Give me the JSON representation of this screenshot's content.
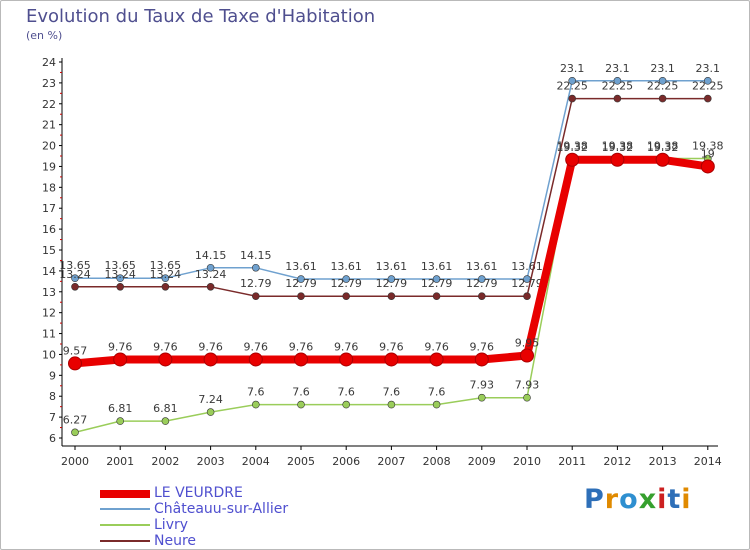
{
  "title": "Evolution du Taux de Taxe d'Habitation",
  "unit_label": "(en %)",
  "logo_text": "Proxiti",
  "chart_data": {
    "type": "line",
    "title": "Evolution du Taux de Taxe d'Habitation",
    "xlabel": "",
    "ylabel": "(en %)",
    "ylim": [
      6,
      24
    ],
    "grid": false,
    "legend_position": "bottom-left",
    "x": [
      "2000",
      "2001",
      "2002",
      "2003",
      "2004",
      "2005",
      "2006",
      "2007",
      "2008",
      "2009",
      "2010",
      "2011",
      "2012",
      "2013",
      "2014"
    ],
    "yticks": [
      6,
      7,
      8,
      9,
      10,
      11,
      12,
      13,
      14,
      15,
      16,
      17,
      18,
      19,
      20,
      21,
      22,
      23,
      24
    ],
    "series": [
      {
        "name": "Châteauu-sur-Allier",
        "color": "#6fa1cf",
        "values": [
          13.65,
          13.65,
          13.65,
          14.15,
          14.15,
          13.61,
          13.61,
          13.61,
          13.61,
          13.61,
          13.61,
          23.1,
          23.1,
          23.1,
          23.1
        ],
        "labels": [
          "13.65",
          "13.65",
          "13.65",
          "14.15",
          "14.15",
          "13.61",
          "13.61",
          "13.61",
          "13.61",
          "13.61",
          "13.61",
          "23.1",
          "23.1",
          "23.1",
          "23.1"
        ]
      },
      {
        "name": "Neure",
        "color": "#7a2a2a",
        "values": [
          13.24,
          13.24,
          13.24,
          13.24,
          12.79,
          12.79,
          12.79,
          12.79,
          12.79,
          12.79,
          12.79,
          22.25,
          22.25,
          22.25,
          22.25
        ],
        "labels": [
          "13.24",
          "13.24",
          "13.24",
          "13.24",
          "12.79",
          "12.79",
          "12.79",
          "12.79",
          "12.79",
          "12.79",
          "12.79",
          "22.25",
          "22.25",
          "22.25",
          "22.25"
        ]
      },
      {
        "name": "Livry",
        "color": "#9acd5a",
        "values": [
          6.27,
          6.81,
          6.81,
          7.24,
          7.6,
          7.6,
          7.6,
          7.6,
          7.6,
          7.93,
          7.93,
          19.38,
          19.38,
          19.38,
          19.38
        ],
        "labels": [
          "6.27",
          "6.81",
          "6.81",
          "7.24",
          "7.6",
          "7.6",
          "7.6",
          "7.6",
          "7.6",
          "7.93",
          "7.93",
          "19.38",
          "19.38",
          "19.38",
          "19.38"
        ]
      },
      {
        "name": "LE VEURDRE",
        "color": "#e80000",
        "values": [
          9.57,
          9.76,
          9.76,
          9.76,
          9.76,
          9.76,
          9.76,
          9.76,
          9.76,
          9.76,
          9.95,
          19.32,
          19.32,
          19.32,
          19.0
        ],
        "labels": [
          "9.57",
          "9.76",
          "9.76",
          "9.76",
          "9.76",
          "9.76",
          "9.76",
          "9.76",
          "9.76",
          "9.76",
          "9.95",
          "19.32",
          "19.32",
          "19.32",
          "19"
        ]
      }
    ]
  },
  "legend": [
    {
      "label": "LE VEURDRE",
      "color": "#e80000"
    },
    {
      "label": "Châteauu-sur-Allier",
      "color": "#6fa1cf"
    },
    {
      "label": "Livry",
      "color": "#9acd5a"
    },
    {
      "label": "Neure",
      "color": "#7a2a2a"
    }
  ]
}
